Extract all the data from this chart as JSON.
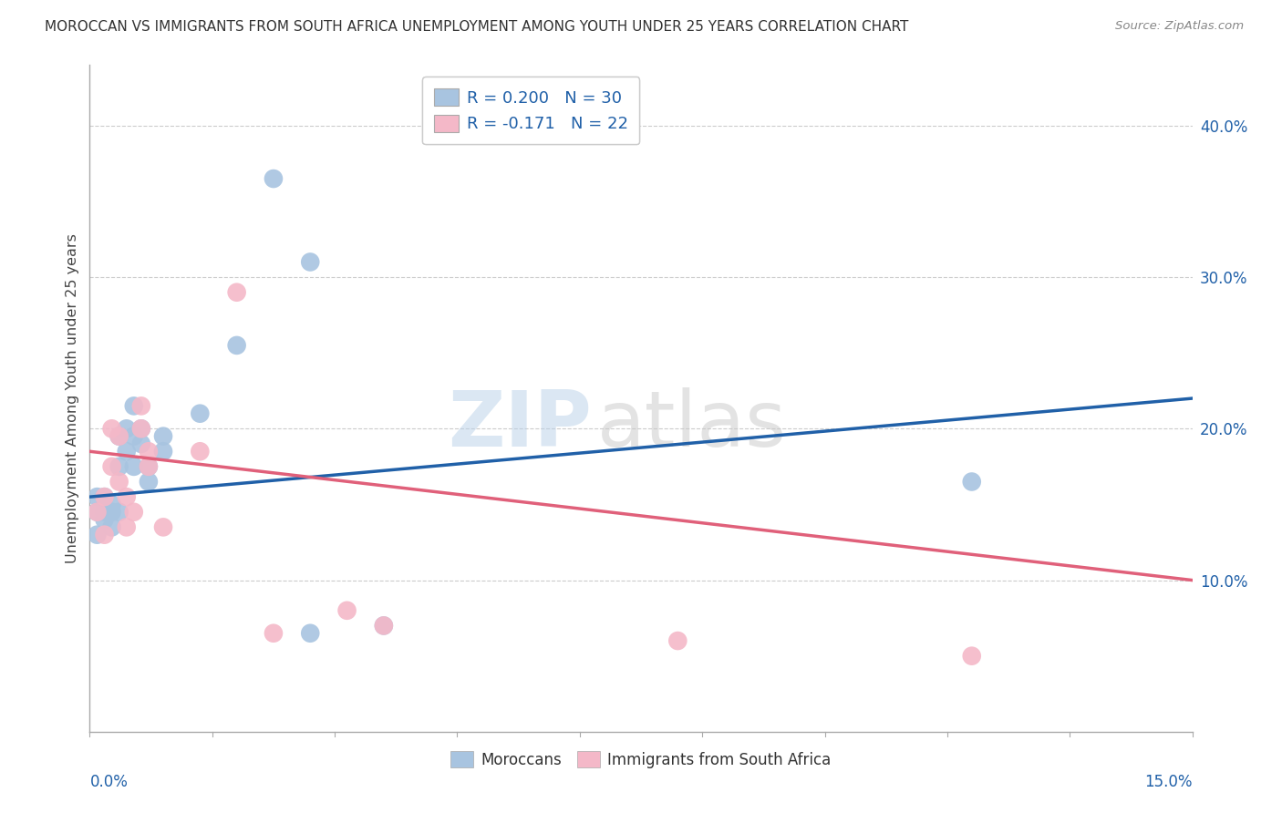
{
  "title": "MOROCCAN VS IMMIGRANTS FROM SOUTH AFRICA UNEMPLOYMENT AMONG YOUTH UNDER 25 YEARS CORRELATION CHART",
  "source": "Source: ZipAtlas.com",
  "ylabel": "Unemployment Among Youth under 25 years",
  "ytick_labels": [
    "10.0%",
    "20.0%",
    "30.0%",
    "40.0%"
  ],
  "ytick_values": [
    0.1,
    0.2,
    0.3,
    0.4
  ],
  "xlim": [
    0.0,
    0.15
  ],
  "ylim": [
    0.0,
    0.44
  ],
  "legend_label1": "R = 0.200   N = 30",
  "legend_label2": "R = -0.171   N = 22",
  "color_blue": "#a8c4e0",
  "color_pink": "#f4b8c8",
  "line_blue": "#2060a8",
  "line_pink": "#e0607a",
  "watermark_zip": "ZIP",
  "watermark_atlas": "atlas",
  "background_color": "#ffffff",
  "grid_color": "#cccccc",
  "blue_dots_x": [
    0.001,
    0.001,
    0.001,
    0.002,
    0.002,
    0.002,
    0.003,
    0.003,
    0.003,
    0.004,
    0.004,
    0.004,
    0.005,
    0.005,
    0.006,
    0.006,
    0.006,
    0.007,
    0.007,
    0.008,
    0.008,
    0.01,
    0.01,
    0.015,
    0.02,
    0.025,
    0.03,
    0.03,
    0.04,
    0.12
  ],
  "blue_dots_y": [
    0.155,
    0.145,
    0.13,
    0.145,
    0.14,
    0.155,
    0.15,
    0.145,
    0.135,
    0.195,
    0.145,
    0.175,
    0.2,
    0.185,
    0.195,
    0.215,
    0.175,
    0.2,
    0.19,
    0.175,
    0.165,
    0.195,
    0.185,
    0.21,
    0.255,
    0.365,
    0.31,
    0.065,
    0.07,
    0.165
  ],
  "pink_dots_x": [
    0.001,
    0.002,
    0.002,
    0.003,
    0.003,
    0.004,
    0.004,
    0.005,
    0.005,
    0.006,
    0.007,
    0.007,
    0.008,
    0.008,
    0.01,
    0.015,
    0.02,
    0.025,
    0.035,
    0.04,
    0.08,
    0.12
  ],
  "pink_dots_y": [
    0.145,
    0.155,
    0.13,
    0.2,
    0.175,
    0.195,
    0.165,
    0.155,
    0.135,
    0.145,
    0.215,
    0.2,
    0.185,
    0.175,
    0.135,
    0.185,
    0.29,
    0.065,
    0.08,
    0.07,
    0.06,
    0.05
  ],
  "blue_line_x": [
    0.0,
    0.15
  ],
  "blue_line_y": [
    0.155,
    0.22
  ],
  "pink_line_x": [
    0.0,
    0.15
  ],
  "pink_line_y": [
    0.185,
    0.1
  ]
}
